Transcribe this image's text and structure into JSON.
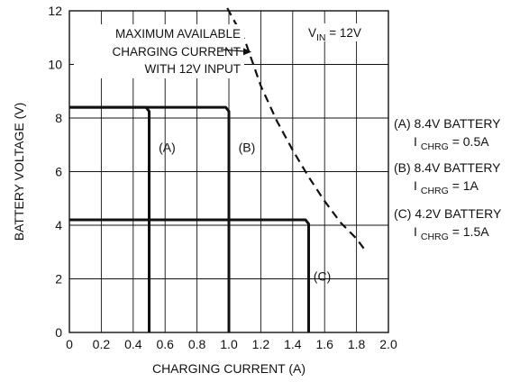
{
  "chart_data": {
    "type": "line",
    "xlabel": "CHARGING CURRENT (A)",
    "ylabel": "BATTERY VOLTAGE (V)",
    "xlim": [
      0,
      2.0
    ],
    "ylim": [
      0,
      12
    ],
    "x_ticks": [
      "0",
      "0.2",
      "0.4",
      "0.6",
      "0.8",
      "1.0",
      "1.2",
      "1.4",
      "1.6",
      "1.8",
      "2.0"
    ],
    "y_ticks": [
      "0",
      "2",
      "4",
      "6",
      "8",
      "10",
      "12"
    ],
    "x_tick_values": [
      0,
      0.2,
      0.4,
      0.6,
      0.8,
      1.0,
      1.2,
      1.4,
      1.6,
      1.8,
      2.0
    ],
    "y_tick_values": [
      0,
      2,
      4,
      6,
      8,
      10,
      12
    ],
    "grid": true,
    "series": [
      {
        "label": "(A)",
        "style": "solid",
        "x": [
          0,
          0.48,
          0.5,
          0.5
        ],
        "y": [
          8.4,
          8.4,
          8.25,
          0
        ]
      },
      {
        "label": "(B)",
        "style": "solid",
        "x": [
          0,
          0.98,
          1.0,
          1.0
        ],
        "y": [
          8.4,
          8.4,
          8.25,
          0
        ]
      },
      {
        "label": "(C)",
        "style": "solid",
        "x": [
          0,
          1.48,
          1.5,
          1.5
        ],
        "y": [
          4.2,
          4.2,
          4.05,
          0
        ]
      },
      {
        "style": "dashed",
        "x": [
          0.99,
          1.1,
          1.2,
          1.3,
          1.4,
          1.5,
          1.6,
          1.7,
          1.8,
          1.85
        ],
        "y": [
          12.1,
          10.9,
          9.2,
          7.9,
          6.8,
          5.8,
          4.9,
          4.1,
          3.5,
          3.1
        ]
      }
    ],
    "curve_labels": [
      {
        "text": "(A)",
        "x": 0.56,
        "y": 6.9
      },
      {
        "text": "(B)",
        "x": 1.06,
        "y": 6.9
      },
      {
        "text": "(C)",
        "x": 1.53,
        "y": 2.1
      }
    ],
    "annotation": {
      "lines": [
        "MAXIMUM AVAILABLE",
        "CHARGING CURRENT",
        "WITH 12V INPUT"
      ]
    },
    "vin": {
      "main": "V",
      "sub": "IN",
      "rest": " = 12V"
    },
    "legend": [
      {
        "title": "(A) 8.4V BATTERY",
        "i": "I",
        "sub": "CHRG",
        "value": " = 0.5A"
      },
      {
        "title": "(B) 8.4V BATTERY",
        "i": "I",
        "sub": "CHRG",
        "value": " = 1A"
      },
      {
        "title": "(C) 4.2V BATTERY",
        "i": "I",
        "sub": "CHRG",
        "value": " = 1.5A"
      }
    ],
    "colors": {
      "line": "#111111",
      "grid": "#111111",
      "background": "#ffffff"
    }
  }
}
